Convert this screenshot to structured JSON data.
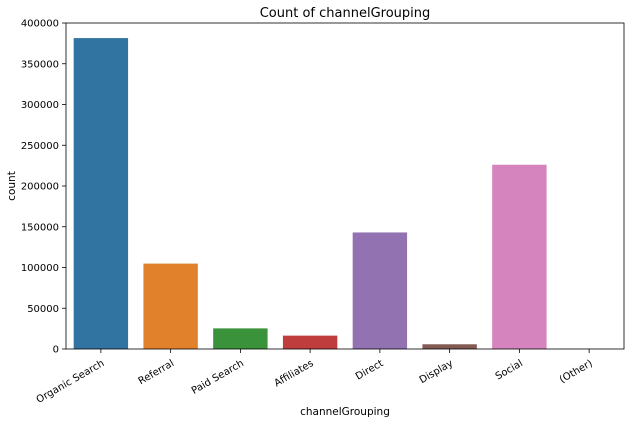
{
  "chart_data": {
    "type": "bar",
    "title": "Count of channelGrouping",
    "xlabel": "channelGrouping",
    "ylabel": "count",
    "categories": [
      "Organic Search",
      "Referral",
      "Paid Search",
      "Affiliates",
      "Direct",
      "Display",
      "Social",
      "(Other)"
    ],
    "values": [
      381500,
      104800,
      25300,
      16400,
      143000,
      5800,
      226100,
      120
    ],
    "colors": [
      "#3274a1",
      "#e1812c",
      "#3a923a",
      "#c03d3e",
      "#9372b2",
      "#845b53",
      "#d684bd",
      "#7f7f7f"
    ],
    "ylim": [
      0,
      400000
    ],
    "yticks": [
      0,
      50000,
      100000,
      150000,
      200000,
      250000,
      300000,
      350000,
      400000
    ],
    "ytick_labels": [
      "0",
      "50000",
      "100000",
      "150000",
      "200000",
      "250000",
      "300000",
      "350000",
      "400000"
    ],
    "grid": false,
    "legend": "none"
  }
}
